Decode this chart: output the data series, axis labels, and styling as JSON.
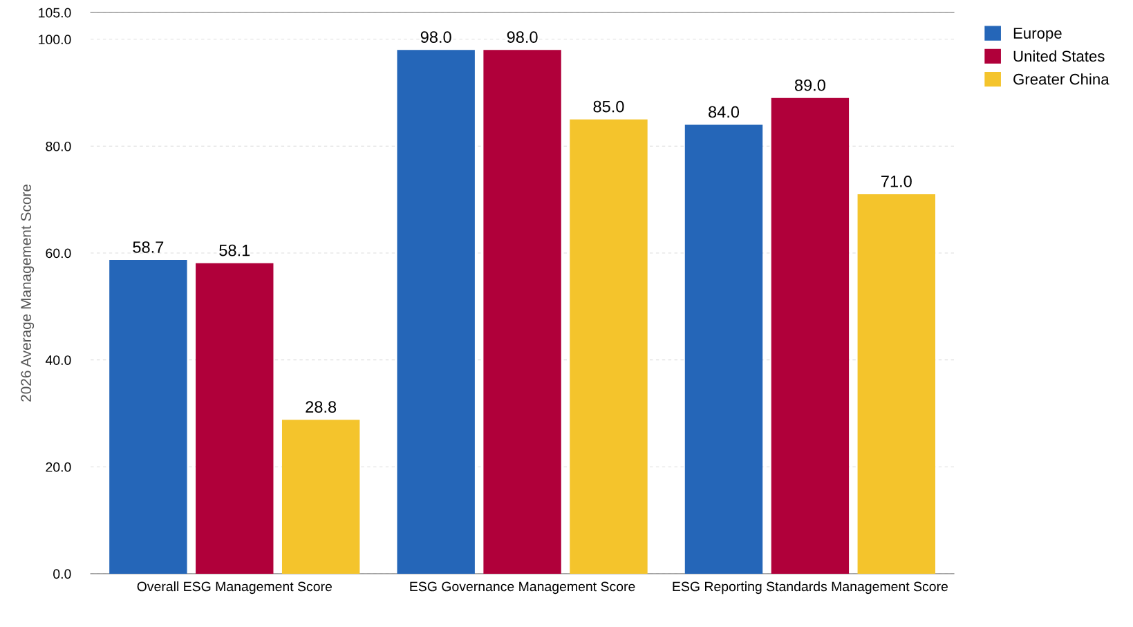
{
  "chart_data": {
    "type": "bar",
    "ylabel": "2026 Average Management Score",
    "categories": [
      "Overall ESG Management Score",
      "ESG Governance Management Score",
      "ESG Reporting Standards Management Score"
    ],
    "series": [
      {
        "name": "Europe",
        "color": "#2566b8",
        "values": [
          58.7,
          98.0,
          84.0
        ],
        "value_labels": [
          "58.7",
          "98.0",
          "84.0"
        ]
      },
      {
        "name": "United States",
        "color": "#b0003a",
        "values": [
          58.1,
          98.0,
          89.0
        ],
        "value_labels": [
          "58.1",
          "98.0",
          "89.0"
        ]
      },
      {
        "name": "Greater China",
        "color": "#f4c42c",
        "values": [
          28.8,
          85.0,
          71.0
        ],
        "value_labels": [
          "28.8",
          "85.0",
          "71.0"
        ]
      }
    ],
    "ylim": [
      0,
      105
    ],
    "yticks": [
      {
        "value": 0,
        "label": "0.0"
      },
      {
        "value": 20,
        "label": "20.0"
      },
      {
        "value": 40,
        "label": "40.0"
      },
      {
        "value": 60,
        "label": "60.0"
      },
      {
        "value": 80,
        "label": "80.0"
      },
      {
        "value": 100,
        "label": "100.0"
      },
      {
        "value": 105,
        "label": "105.0"
      }
    ],
    "grid": "y",
    "legend": "top right"
  }
}
